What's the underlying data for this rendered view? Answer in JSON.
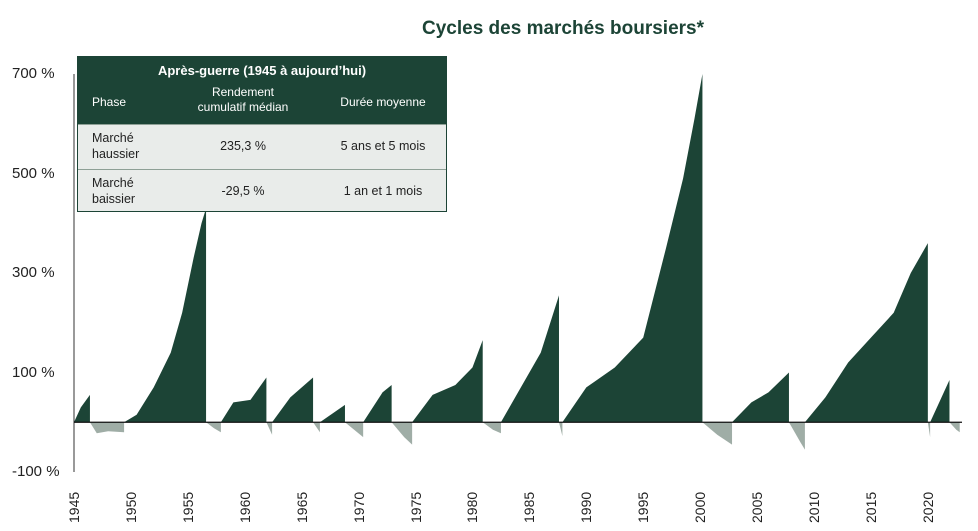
{
  "title": "Cycles des marchés boursiers*",
  "inset": {
    "title": "Après-guerre (1945 à aujourd’hui)",
    "headers": [
      "Phase",
      "Rendement cumulatif médian",
      "Durée moyenne"
    ],
    "rows": [
      {
        "phase": "Marché haussier",
        "return": "235,3 %",
        "duration": "5 ans et 5 mois"
      },
      {
        "phase": "Marché baissier",
        "return": "-29,5 %",
        "duration": "1 an et 1 mois"
      }
    ]
  },
  "colors": {
    "bull": "#1c4436",
    "bear": "#9fada6",
    "text": "#222222"
  },
  "chart_data": {
    "type": "area",
    "title": "Cycles des marchés boursiers*",
    "xlabel": "",
    "ylabel": "",
    "ylim": [
      -100,
      700
    ],
    "y_ticks": [
      "700 %",
      "500 %",
      "300 %",
      "100 %",
      "-100 %"
    ],
    "x_ticks": [
      "1945",
      "1950",
      "1955",
      "1960",
      "1965",
      "1970",
      "1975",
      "1980",
      "1985",
      "1990",
      "1995",
      "2000",
      "2005",
      "2010",
      "2015",
      "2020"
    ],
    "series": [
      {
        "kind": "bull",
        "points": [
          [
            1945.0,
            0
          ],
          [
            1945.6,
            30
          ],
          [
            1946.4,
            55
          ]
        ]
      },
      {
        "kind": "bear",
        "points": [
          [
            1946.4,
            0
          ],
          [
            1947.0,
            -22
          ],
          [
            1948.0,
            -18
          ],
          [
            1949.4,
            -20
          ]
        ]
      },
      {
        "kind": "bull",
        "points": [
          [
            1949.4,
            0
          ],
          [
            1950.5,
            15
          ],
          [
            1952.0,
            70
          ],
          [
            1953.5,
            140
          ],
          [
            1954.5,
            220
          ],
          [
            1955.5,
            330
          ],
          [
            1956.2,
            400
          ],
          [
            1956.6,
            430
          ]
        ]
      },
      {
        "kind": "bear",
        "points": [
          [
            1956.6,
            0
          ],
          [
            1957.3,
            -12
          ],
          [
            1957.9,
            -20
          ]
        ]
      },
      {
        "kind": "bull",
        "points": [
          [
            1957.9,
            0
          ],
          [
            1959.0,
            40
          ],
          [
            1960.5,
            45
          ],
          [
            1961.9,
            90
          ]
        ]
      },
      {
        "kind": "bear",
        "points": [
          [
            1961.9,
            0
          ],
          [
            1962.4,
            -25
          ]
        ]
      },
      {
        "kind": "bull",
        "points": [
          [
            1962.4,
            0
          ],
          [
            1964.0,
            50
          ],
          [
            1966.0,
            90
          ]
        ]
      },
      {
        "kind": "bear",
        "points": [
          [
            1966.0,
            0
          ],
          [
            1966.6,
            -20
          ]
        ]
      },
      {
        "kind": "bull",
        "points": [
          [
            1966.6,
            0
          ],
          [
            1968.8,
            35
          ]
        ]
      },
      {
        "kind": "bear",
        "points": [
          [
            1968.8,
            0
          ],
          [
            1970.4,
            -30
          ]
        ]
      },
      {
        "kind": "bull",
        "points": [
          [
            1970.4,
            0
          ],
          [
            1972.1,
            60
          ],
          [
            1972.9,
            75
          ]
        ]
      },
      {
        "kind": "bear",
        "points": [
          [
            1972.9,
            0
          ],
          [
            1974.0,
            -30
          ],
          [
            1974.7,
            -45
          ]
        ]
      },
      {
        "kind": "bull",
        "points": [
          [
            1974.7,
            0
          ],
          [
            1976.5,
            55
          ],
          [
            1978.5,
            75
          ],
          [
            1980.0,
            110
          ],
          [
            1980.9,
            165
          ]
        ]
      },
      {
        "kind": "bear",
        "points": [
          [
            1980.9,
            0
          ],
          [
            1981.8,
            -15
          ],
          [
            1982.5,
            -22
          ]
        ]
      },
      {
        "kind": "bull",
        "points": [
          [
            1982.5,
            0
          ],
          [
            1984.0,
            60
          ],
          [
            1986.0,
            140
          ],
          [
            1987.6,
            255
          ]
        ]
      },
      {
        "kind": "bear",
        "points": [
          [
            1987.6,
            0
          ],
          [
            1987.9,
            -28
          ]
        ]
      },
      {
        "kind": "bull",
        "points": [
          [
            1987.9,
            0
          ],
          [
            1990.0,
            70
          ],
          [
            1992.5,
            110
          ],
          [
            1995.0,
            170
          ],
          [
            1997.0,
            350
          ],
          [
            1998.5,
            490
          ],
          [
            1999.5,
            610
          ],
          [
            2000.2,
            700
          ]
        ]
      },
      {
        "kind": "bear",
        "points": [
          [
            2000.2,
            0
          ],
          [
            2001.5,
            -25
          ],
          [
            2002.8,
            -45
          ]
        ]
      },
      {
        "kind": "bull",
        "points": [
          [
            2002.8,
            0
          ],
          [
            2004.5,
            40
          ],
          [
            2006.0,
            60
          ],
          [
            2007.8,
            100
          ]
        ]
      },
      {
        "kind": "bear",
        "points": [
          [
            2007.8,
            0
          ],
          [
            2008.8,
            -40
          ],
          [
            2009.2,
            -55
          ]
        ]
      },
      {
        "kind": "bull",
        "points": [
          [
            2009.2,
            0
          ],
          [
            2011.0,
            50
          ],
          [
            2013.0,
            120
          ],
          [
            2015.0,
            170
          ],
          [
            2017.0,
            220
          ],
          [
            2018.5,
            300
          ],
          [
            2020.0,
            360
          ]
        ]
      },
      {
        "kind": "bear",
        "points": [
          [
            2020.0,
            0
          ],
          [
            2020.2,
            -30
          ]
        ]
      },
      {
        "kind": "bull",
        "points": [
          [
            2020.2,
            0
          ],
          [
            2021.0,
            40
          ],
          [
            2021.9,
            85
          ]
        ]
      },
      {
        "kind": "bear",
        "points": [
          [
            2021.9,
            0
          ],
          [
            2022.5,
            -15
          ],
          [
            2022.8,
            -20
          ]
        ]
      }
    ]
  }
}
